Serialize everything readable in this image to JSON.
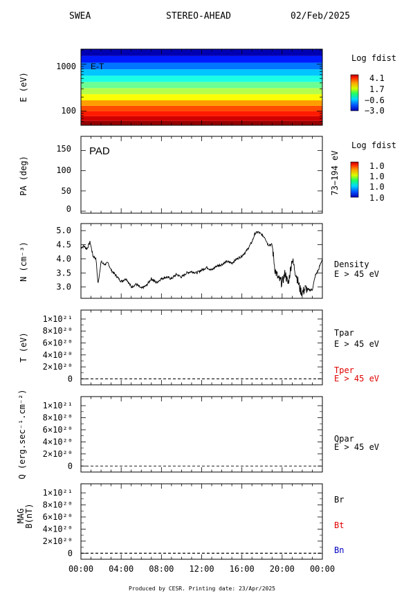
{
  "header": {
    "instrument": "SWEA",
    "spacecraft": "STEREO-AHEAD",
    "date": "02/Feb/2025"
  },
  "footer": "Produced by CESR.   Printing date: 23/Apr/2025",
  "colors": {
    "tper": "#e00000",
    "bt": "#e00000",
    "bn": "#0000c0"
  },
  "chart_data": [
    {
      "type": "heatmap",
      "id": "energy-time",
      "panel_label": "E-T",
      "ylabel": "E (eV)",
      "yscale": "log",
      "y_ticks": [
        "1000",
        "100"
      ],
      "colorbar": {
        "title": "Log fdist",
        "labels": [
          "4.1",
          "1.7",
          "−0.6",
          "−3.0"
        ]
      },
      "bands_low_to_high": [
        {
          "emin": 50,
          "emax": 62,
          "level": 0.98
        },
        {
          "emin": 62,
          "emax": 78,
          "level": 0.92
        },
        {
          "emin": 78,
          "emax": 100,
          "level": 0.85
        },
        {
          "emin": 100,
          "emax": 130,
          "level": 0.8
        },
        {
          "emin": 130,
          "emax": 170,
          "level": 0.72
        },
        {
          "emin": 170,
          "emax": 230,
          "level": 0.62
        },
        {
          "emin": 230,
          "emax": 310,
          "level": 0.55
        },
        {
          "emin": 310,
          "emax": 420,
          "level": 0.48
        },
        {
          "emin": 420,
          "emax": 570,
          "level": 0.4
        },
        {
          "emin": 570,
          "emax": 780,
          "level": 0.32
        },
        {
          "emin": 780,
          "emax": 1080,
          "level": 0.24
        },
        {
          "emin": 1080,
          "emax": 1500,
          "level": 0.15
        },
        {
          "emin": 1500,
          "emax": 2100,
          "level": 0.05
        }
      ]
    },
    {
      "type": "heatmap",
      "id": "pitch-angle",
      "panel_label": "PAD",
      "ylabel": "PA (deg)",
      "ylim": [
        -5,
        185
      ],
      "y_ticks": [
        "150",
        "100",
        "50",
        "0"
      ],
      "right_label": "73−194 eV",
      "colorbar": {
        "title": "Log fdist",
        "labels": [
          "1.0",
          "1.0",
          "1.0",
          "1.0"
        ]
      }
    },
    {
      "type": "line",
      "id": "density",
      "ylabel": "N (cm⁻³)",
      "ylim": [
        2.6,
        5.25
      ],
      "y_ticks": [
        "5.0",
        "4.5",
        "4.0",
        "3.5",
        "3.0"
      ],
      "side_label": [
        "Density",
        "E > 45 eV"
      ],
      "x_hours": [
        0.0,
        0.3,
        0.6,
        0.9,
        1.2,
        1.5,
        1.7,
        2.0,
        2.3,
        2.7,
        3.0,
        3.5,
        4.0,
        4.5,
        5.0,
        5.5,
        6.0,
        6.5,
        7.0,
        7.5,
        8.0,
        8.5,
        9.0,
        9.5,
        10.0,
        10.5,
        11.0,
        11.5,
        12.0,
        12.5,
        13.0,
        13.5,
        14.0,
        14.5,
        15.0,
        15.5,
        16.0,
        16.5,
        17.0,
        17.3,
        17.6,
        18.0,
        18.3,
        18.6,
        19.0,
        19.3,
        19.6,
        20.0,
        20.3,
        20.6,
        21.0,
        21.2,
        21.5,
        21.8,
        22.0,
        22.3,
        22.6,
        23.0,
        23.3,
        23.6,
        24.0
      ],
      "values": [
        4.4,
        4.45,
        4.35,
        4.6,
        4.1,
        4.0,
        3.1,
        3.9,
        3.8,
        3.85,
        3.6,
        3.4,
        3.2,
        3.3,
        3.0,
        3.1,
        2.95,
        3.05,
        3.3,
        3.15,
        3.3,
        3.35,
        3.3,
        3.45,
        3.35,
        3.5,
        3.55,
        3.5,
        3.6,
        3.7,
        3.6,
        3.75,
        3.8,
        3.9,
        3.85,
        4.0,
        4.1,
        4.3,
        4.6,
        4.9,
        4.95,
        4.85,
        4.75,
        4.5,
        4.5,
        3.6,
        3.3,
        3.15,
        3.5,
        3.1,
        4.0,
        3.7,
        3.3,
        2.9,
        2.8,
        2.95,
        2.9,
        2.9,
        3.4,
        3.6,
        4.0
      ]
    },
    {
      "type": "line",
      "id": "temperature",
      "ylabel": "T (eV)",
      "ylim": [
        -1e+20,
        1.15e+21
      ],
      "y_ticks": [
        "1×10²¹",
        "8×10²⁰",
        "6×10²⁰",
        "4×10²⁰",
        "2×10²⁰",
        "0"
      ],
      "side_labels": [
        {
          "text": [
            "Tpar",
            "E > 45 eV"
          ],
          "color": "#000000"
        },
        {
          "text": [
            "Tper",
            "E > 45 eV"
          ],
          "color": "#e00000"
        }
      ],
      "series": [
        {
          "name": "Tpar",
          "constant": 0
        },
        {
          "name": "Tper",
          "constant": 0
        }
      ]
    },
    {
      "type": "line",
      "id": "heat-flux",
      "ylabel": "Q (erg.sec⁻¹.cm⁻²)",
      "ylim": [
        -1e+20,
        1.15e+21
      ],
      "y_ticks": [
        "1×10²¹",
        "8×10²⁰",
        "6×10²⁰",
        "4×10²⁰",
        "2×10²⁰",
        "0"
      ],
      "side_labels": [
        {
          "text": [
            "Qpar",
            "E > 45 eV"
          ],
          "color": "#000000"
        }
      ],
      "series": [
        {
          "name": "Qpar",
          "constant": 0
        }
      ]
    },
    {
      "type": "line",
      "id": "magnetic-field",
      "ylabel": [
        "MAG",
        "B(nT)"
      ],
      "ylim": [
        -1e+20,
        1.15e+21
      ],
      "y_ticks": [
        "1×10²¹",
        "8×10²⁰",
        "6×10²⁰",
        "4×10²⁰",
        "2×10²⁰",
        "0"
      ],
      "side_labels": [
        {
          "text": [
            "Br"
          ],
          "color": "#000000"
        },
        {
          "text": [
            "Bt"
          ],
          "color": "#e00000"
        },
        {
          "text": [
            "Bn"
          ],
          "color": "#0000c0"
        }
      ],
      "series": [
        {
          "name": "Br",
          "constant": 0
        },
        {
          "name": "Bt",
          "constant": 0
        },
        {
          "name": "Bn",
          "constant": 0
        }
      ]
    }
  ],
  "x_axis": {
    "range_hours": [
      0,
      24
    ],
    "tick_labels": [
      "00:00",
      "04:00",
      "08:00",
      "12:00",
      "16:00",
      "20:00",
      "00:00"
    ]
  }
}
